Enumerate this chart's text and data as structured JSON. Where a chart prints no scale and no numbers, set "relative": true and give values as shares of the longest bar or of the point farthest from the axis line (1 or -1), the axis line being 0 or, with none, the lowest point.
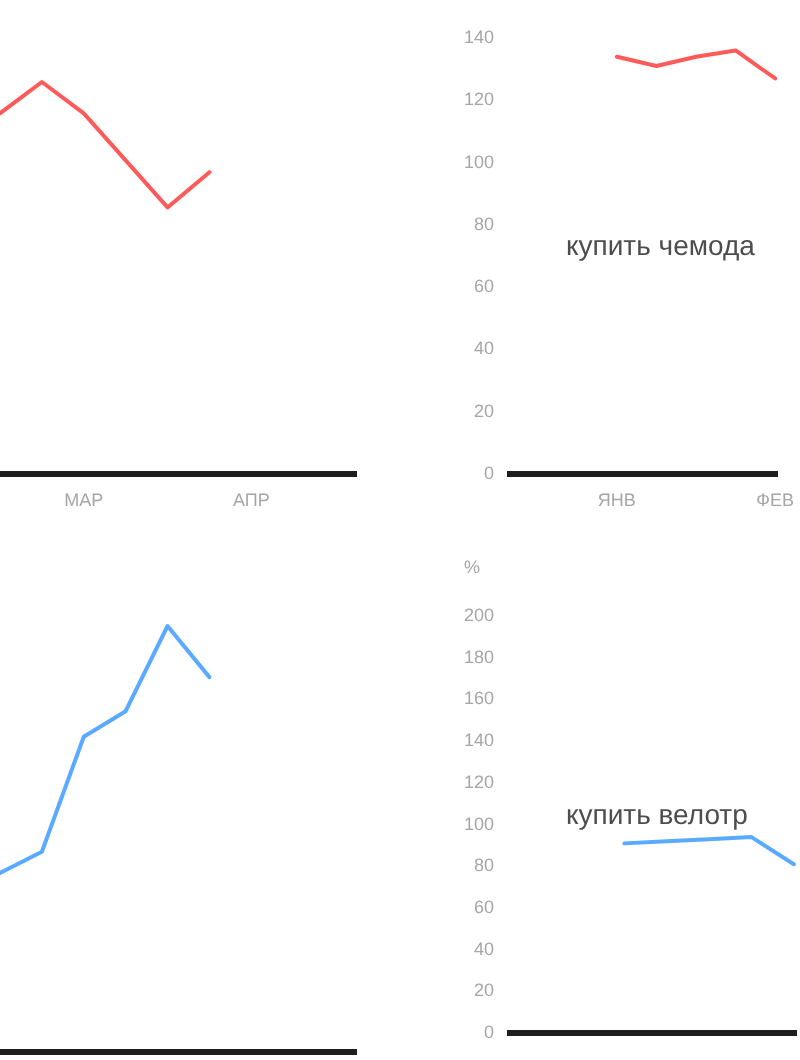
{
  "chart_data": [
    {
      "type": "line",
      "relative": true,
      "categories": [
        null,
        null,
        "МАР",
        null,
        null,
        null,
        "АПР",
        null,
        null
      ],
      "values": [
        0.92,
        1,
        0.92,
        0.8,
        0.68,
        0.77,
        null,
        null,
        null
      ],
      "color": "#ff5a5a"
    },
    {
      "type": "line",
      "categories": [
        null,
        null,
        "ЯНВ",
        null,
        null,
        null,
        "ФЕВ"
      ],
      "values": [
        null,
        null,
        134,
        131,
        134,
        136,
        127
      ],
      "color": "#ff5a5a",
      "ylim": [
        0,
        140
      ],
      "yticks": [
        0,
        20,
        40,
        60,
        80,
        100,
        120,
        140
      ],
      "annotations": [
        "купить чемода"
      ]
    },
    {
      "type": "line",
      "relative": true,
      "categories": [
        null,
        null,
        null,
        null,
        null,
        null,
        null,
        null,
        null
      ],
      "values": [
        0.42,
        0.47,
        0.74,
        0.8,
        1,
        0.88,
        null,
        null,
        null
      ],
      "color": "#5aaaff"
    },
    {
      "type": "line",
      "categories": [
        null,
        null,
        null,
        null,
        null,
        null,
        null
      ],
      "values": [
        null,
        null,
        91,
        92,
        93,
        94,
        81
      ],
      "color": "#5aaaff",
      "ylim": [
        0,
        200
      ],
      "yticks": [
        0,
        20,
        40,
        60,
        80,
        100,
        120,
        140,
        160,
        180,
        200
      ],
      "ylabel": "%",
      "annotations": [
        "купить велотр"
      ]
    }
  ]
}
